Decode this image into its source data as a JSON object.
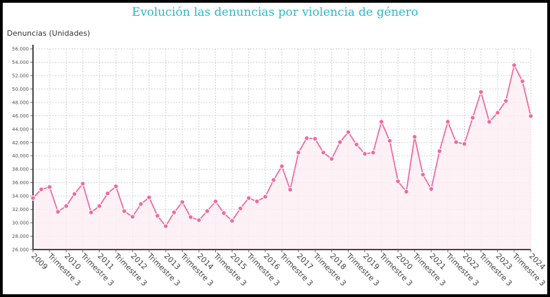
{
  "chart_data": {
    "type": "line",
    "title": "Evolución las denuncias por violencia de género",
    "ylabel": "Denuncias (Unidades)",
    "xlabel": "",
    "ylim": [
      26000,
      56000
    ],
    "yticks": [
      "26.000",
      "28.000",
      "30.000",
      "32.000",
      "34.000",
      "36.000",
      "38.000",
      "40.000",
      "42.000",
      "44.000",
      "46.000",
      "48.000",
      "50.000",
      "52.000",
      "54.000",
      "56.000"
    ],
    "xtick_labels": [
      "2009",
      "Trimestre 3",
      "2010",
      "Trimestre 3",
      "2011",
      "Trimestre 3",
      "2012",
      "Trimestre 3",
      "2013",
      "Trimestre 3",
      "2014",
      "Trimestre 3",
      "2015",
      "Trimestre 3",
      "2016",
      "Trimestre 3",
      "2017",
      "Trimestre 3",
      "2018",
      "Trimestre 3",
      "2019",
      "Trimestre 3",
      "2020",
      "Trimestre 3",
      "2021",
      "Trimestre 3",
      "2022",
      "Trimestre 3",
      "2023",
      "Trimestre 3",
      "2024"
    ],
    "grid": true,
    "color": "#f06a9f",
    "fill_color": "#fdeef4",
    "x_start": "2009 Q1",
    "x_end": "2024 Q1",
    "values": [
      33700,
      35000,
      35350,
      31650,
      32500,
      34300,
      35850,
      31550,
      32500,
      34400,
      35450,
      31750,
      30900,
      32800,
      33800,
      31050,
      29500,
      31550,
      33100,
      30850,
      30400,
      31750,
      33200,
      31450,
      30300,
      32150,
      33700,
      33200,
      33900,
      36400,
      38450,
      34950,
      40500,
      42650,
      42550,
      40500,
      39550,
      42050,
      43550,
      41700,
      40300,
      40500,
      45100,
      42250,
      36200,
      34650,
      42850,
      37200,
      35050,
      40700,
      45100,
      42050,
      41800,
      45700,
      49550,
      45100,
      46450,
      48200,
      53550,
      51150,
      45950
    ]
  }
}
